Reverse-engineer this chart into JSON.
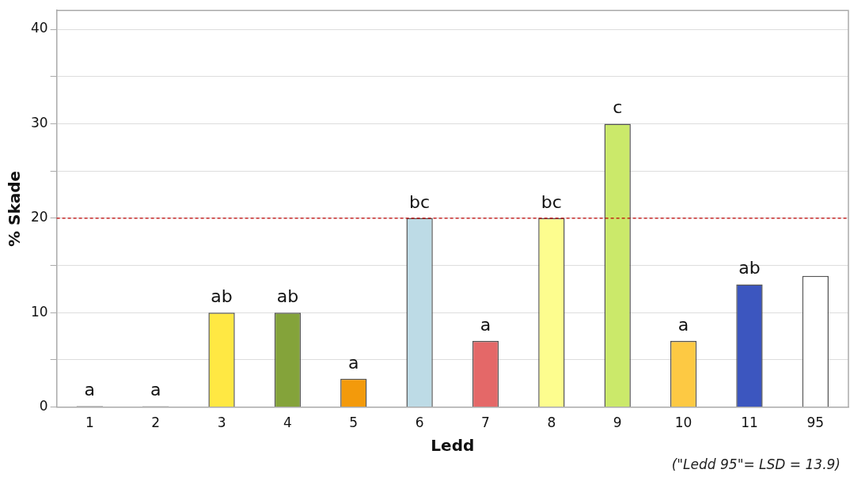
{
  "chart_data": {
    "type": "bar",
    "xlabel": "Ledd",
    "ylabel": "% Skade",
    "categories": [
      "1",
      "2",
      "3",
      "4",
      "5",
      "6",
      "7",
      "8",
      "9",
      "10",
      "11",
      "95"
    ],
    "values": [
      0.1,
      0.1,
      10,
      10,
      3,
      20,
      7,
      20,
      30,
      7,
      13,
      13.9
    ],
    "colors": [
      "#000000",
      "#666666",
      "#ffe843",
      "#84a33a",
      "#f39a0b",
      "#bddbe6",
      "#e46868",
      "#fdfd8e",
      "#cbe96a",
      "#fdc943",
      "#3c56bf",
      "#ffffff"
    ],
    "value_labels": [
      "a",
      "a",
      "ab",
      "ab",
      "a",
      "bc",
      "a",
      "bc",
      "c",
      "a",
      "ab",
      null
    ],
    "ylim": [
      0,
      42
    ],
    "yticks": [
      0,
      {
        "value": 5,
        "label": null
      },
      10,
      {
        "value": 15,
        "label": null
      },
      20,
      {
        "value": 25,
        "label": null
      },
      30,
      {
        "value": 35,
        "label": null
      },
      40
    ],
    "grid": "y",
    "ref_lines": [
      {
        "axis": "y",
        "value": 20,
        "color": "#c00000",
        "line_style": "dashed"
      }
    ],
    "annotations": [
      "(\"Ledd 95\"= LSD = 13.9)"
    ]
  }
}
